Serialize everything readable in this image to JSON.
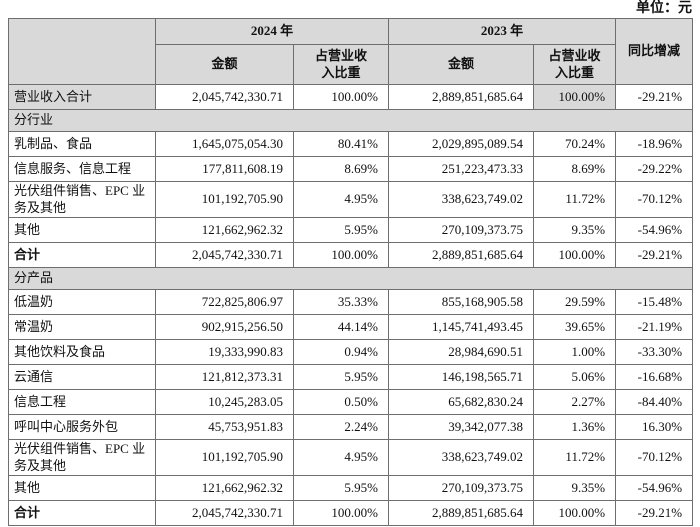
{
  "unit_label": "单位：元",
  "header": {
    "year_2024": "2024 年",
    "year_2023": "2023 年",
    "amount_2024": "金额",
    "share_2024": "占营业收入比重",
    "amount_2023": "金额",
    "share_2023": "占营业收入比重",
    "yoy": "同比增减"
  },
  "rows": [
    {
      "type": "data",
      "label": "营业收入合计",
      "label_shaded": true,
      "shaded_cells": [
        3
      ],
      "cells": [
        "2,045,742,330.71",
        "100.00%",
        "2,889,851,685.64",
        "100.00%",
        "-29.21%"
      ]
    },
    {
      "type": "section",
      "label": "分行业"
    },
    {
      "type": "data",
      "label": "乳制品、食品",
      "cells": [
        "1,645,075,054.30",
        "80.41%",
        "2,029,895,089.54",
        "70.24%",
        "-18.96%"
      ]
    },
    {
      "type": "data",
      "label": "信息服务、信息工程",
      "cells": [
        "177,811,608.19",
        "8.69%",
        "251,223,473.33",
        "8.69%",
        "-29.22%"
      ]
    },
    {
      "type": "data",
      "label": "光伏组件销售、EPC 业务及其他",
      "tall": true,
      "cells": [
        "101,192,705.90",
        "4.95%",
        "338,623,749.02",
        "11.72%",
        "-70.12%"
      ]
    },
    {
      "type": "data",
      "label": "其他",
      "cells": [
        "121,662,962.32",
        "5.95%",
        "270,109,373.75",
        "9.35%",
        "-54.96%"
      ]
    },
    {
      "type": "total",
      "label": "合计",
      "cells": [
        "2,045,742,330.71",
        "100.00%",
        "2,889,851,685.64",
        "100.00%",
        "-29.21%"
      ]
    },
    {
      "type": "section",
      "label": "分产品"
    },
    {
      "type": "data",
      "label": "低温奶",
      "cells": [
        "722,825,806.97",
        "35.33%",
        "855,168,905.58",
        "29.59%",
        "-15.48%"
      ]
    },
    {
      "type": "data",
      "label": "常温奶",
      "cells": [
        "902,915,256.50",
        "44.14%",
        "1,145,741,493.45",
        "39.65%",
        "-21.19%"
      ]
    },
    {
      "type": "data",
      "label": "其他饮料及食品",
      "cells": [
        "19,333,990.83",
        "0.94%",
        "28,984,690.51",
        "1.00%",
        "-33.30%"
      ]
    },
    {
      "type": "data",
      "label": "云通信",
      "cells": [
        "121,812,373.31",
        "5.95%",
        "146,198,565.71",
        "5.06%",
        "-16.68%"
      ]
    },
    {
      "type": "data",
      "label": "信息工程",
      "cells": [
        "10,245,283.05",
        "0.50%",
        "65,682,830.24",
        "2.27%",
        "-84.40%"
      ]
    },
    {
      "type": "data",
      "label": "呼叫中心服务外包",
      "cells": [
        "45,753,951.83",
        "2.24%",
        "39,342,077.38",
        "1.36%",
        "16.30%"
      ]
    },
    {
      "type": "data",
      "label": "光伏组件销售、EPC 业务及其他",
      "tall": true,
      "cells": [
        "101,192,705.90",
        "4.95%",
        "338,623,749.02",
        "11.72%",
        "-70.12%"
      ]
    },
    {
      "type": "data",
      "label": "其他",
      "cells": [
        "121,662,962.32",
        "5.95%",
        "270,109,373.75",
        "9.35%",
        "-54.96%"
      ]
    },
    {
      "type": "total",
      "label": "合计",
      "cells": [
        "2,045,742,330.71",
        "100.00%",
        "2,889,851,685.64",
        "100.00%",
        "-29.21%"
      ]
    }
  ],
  "colors": {
    "shaded_bg": "#d9d9d9",
    "border": "#6e6e6e",
    "text": "#111111"
  }
}
